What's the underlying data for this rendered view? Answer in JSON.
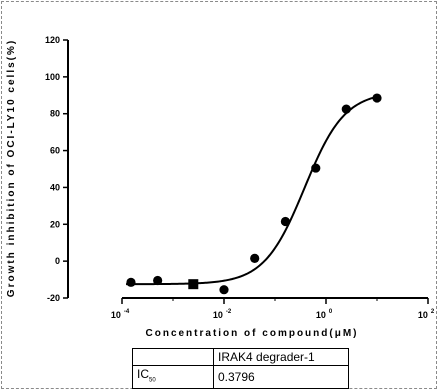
{
  "chart_data": {
    "type": "scatter",
    "title": "",
    "xlabel": "Concentration of compound(μM)",
    "ylabel": "Growth inhibition of OCI-LY10 cells(%)",
    "x_scale": "log",
    "xlim": [
      0.0001,
      100
    ],
    "ylim": [
      -20,
      120
    ],
    "x_ticks": [
      {
        "value": 0.0001,
        "base": "10",
        "exp": "-4"
      },
      {
        "value": 0.01,
        "base": "10",
        "exp": "-2"
      },
      {
        "value": 1,
        "base": "10",
        "exp": "0"
      },
      {
        "value": 100,
        "base": "10",
        "exp": "2"
      }
    ],
    "y_ticks": [
      -20,
      0,
      20,
      40,
      60,
      80,
      100,
      120
    ],
    "points": [
      {
        "x": 0.00015,
        "y": -11.5,
        "marker": "circle"
      },
      {
        "x": 0.0005,
        "y": -10.5,
        "marker": "circle"
      },
      {
        "x": 0.0025,
        "y": -12.5,
        "marker": "square"
      },
      {
        "x": 0.01,
        "y": -15.5,
        "marker": "circle"
      },
      {
        "x": 0.04,
        "y": 1.5,
        "marker": "circle"
      },
      {
        "x": 0.16,
        "y": 21.5,
        "marker": "circle"
      },
      {
        "x": 0.63,
        "y": 50.5,
        "marker": "circle"
      },
      {
        "x": 2.5,
        "y": 82.5,
        "marker": "circle"
      },
      {
        "x": 10,
        "y": 88.5,
        "marker": "circle"
      }
    ],
    "fit_curve": {
      "bottom": -12.5,
      "top": 92,
      "ic50": 0.3796,
      "hill": 1.1
    },
    "grid": false,
    "legend": "none"
  },
  "table": {
    "header": [
      "",
      "IRAK4 degrader-1"
    ],
    "row_label_main": "IC",
    "row_label_sub": "50",
    "row_value": "0.3796"
  }
}
